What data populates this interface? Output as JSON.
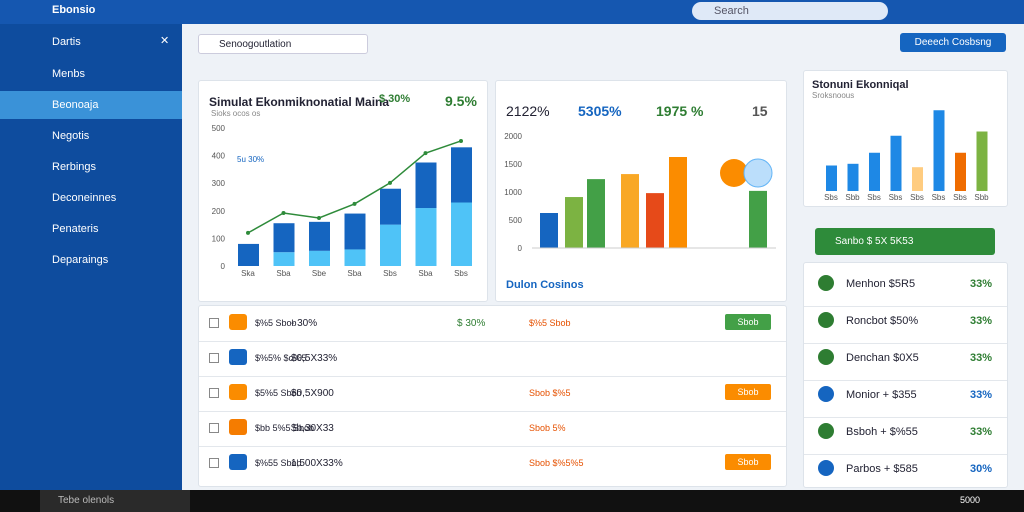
{
  "topbar": {
    "app": "Ebonsio",
    "search": "Search"
  },
  "sidebar": {
    "title": "Dartis",
    "items": [
      "Menbs",
      "Beonoaja",
      "Negotis",
      "Rerbings",
      "Deconeinnes",
      "Penateris",
      "Deparaings"
    ],
    "selected": 1
  },
  "toolbar": {
    "dropdown": "Senoogoutlation",
    "button": "Deeech Cosbsng"
  },
  "card1": {
    "title": "Simulat Ekonmiknonatial Maina",
    "subtitle": "Sioks ocos os",
    "stats": [
      "$ 30%",
      "9.5%"
    ],
    "legend": "5u 30%",
    "chart": {
      "type": "bar",
      "ylim": [
        0,
        500
      ],
      "yticks": [
        0,
        100,
        200,
        300,
        400,
        500
      ],
      "categories": [
        "Ska",
        "Sba",
        "Sbe",
        "Sba",
        "Sbs",
        "Sba",
        "Sbs"
      ],
      "series": [
        {
          "name": "Base",
          "color": "#4fc3f7",
          "values": [
            0,
            50,
            55,
            60,
            150,
            210,
            230
          ]
        },
        {
          "name": "Top",
          "color": "#1565c0",
          "values": [
            80,
            105,
            105,
            130,
            130,
            165,
            200
          ]
        }
      ],
      "line": {
        "color": "#2e8b3a",
        "values": [
          120,
          192,
          174,
          225,
          301,
          409,
          453
        ]
      }
    }
  },
  "card2": {
    "stats": [
      "2122%",
      "5305%",
      "1975 %",
      "15"
    ],
    "footer": "Dulon Cosinos",
    "chart": {
      "type": "bar",
      "ylim": [
        0,
        2000
      ],
      "yticks": [
        0,
        500,
        1000,
        1500,
        2000
      ],
      "values": [
        625,
        910,
        1230,
        1320,
        980,
        1625,
        1020
      ],
      "colors": [
        "#1565c0",
        "#7cb342",
        "#43a047",
        "#f9a825",
        "#e64a19",
        "#fb8c00",
        "#43a047"
      ]
    }
  },
  "card3": {
    "title": "Stonuni Ekonniqal",
    "subtitle": "Sroksnoous",
    "chart": {
      "type": "bar",
      "ylim": [
        0,
        100
      ],
      "categories": [
        "Sbs",
        "Sbb",
        "Sbs",
        "Sbs",
        "Sbs",
        "Sbs",
        "Sbs",
        "Sbb"
      ],
      "values": [
        30,
        32,
        45,
        65,
        28,
        95,
        45,
        70
      ],
      "colors": [
        "#1e88e5",
        "#1e88e5",
        "#1e88e5",
        "#1e88e5",
        "#ffcc80",
        "#1e88e5",
        "#ef6c00",
        "#7cb342"
      ]
    }
  },
  "banner": "Sanbo $ 5X 5K53",
  "list": [
    {
      "name": "Menhon $5R5",
      "value": "33%",
      "color": "#2e7d32"
    },
    {
      "name": "Roncbot $50%",
      "value": "33%",
      "color": "#2e7d32"
    },
    {
      "name": "Denchan $0X5",
      "value": "33%",
      "color": "#2e7d32"
    },
    {
      "name": "Monior + $355",
      "value": "33%",
      "color": "#1565c0"
    },
    {
      "name": "Bsboh + $%55",
      "value": "33%",
      "color": "#2e7d32"
    },
    {
      "name": "Parbos + $585",
      "value": "30%",
      "color": "#1565c0"
    }
  ],
  "table": [
    {
      "name": "$%5 Sbob",
      "amount": "- 30%",
      "status": "$ 30%",
      "note": "$%5 Sbob",
      "action": "Sbob"
    },
    {
      "name": "$%5% $o%5",
      "amount": "$0,5X33%",
      "status": "",
      "note": "",
      "action": ""
    },
    {
      "name": "$5%5 Sbob",
      "amount": "$0,5X900",
      "status": "",
      "note": "Sbob $%5",
      "action": "Sbob"
    },
    {
      "name": "$bb 5%5 Sbob",
      "amount": "$b,30X33",
      "status": "",
      "note": "Sbob 5%",
      "action": ""
    },
    {
      "name": "$%55 Sbob",
      "amount": "1,500X33%",
      "status": "",
      "note": "Sbob $%5%5",
      "action": "Sbob"
    }
  ],
  "taskbar": {
    "search": "Tebe olenols",
    "time": "5000"
  }
}
